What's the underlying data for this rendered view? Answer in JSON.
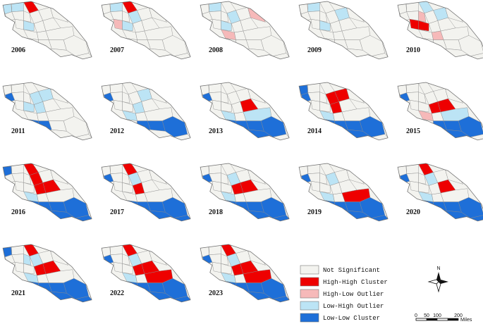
{
  "colors": {
    "not_significant": "#f3f3ef",
    "high_high": "#ee0000",
    "high_low": "#f6b9b9",
    "low_high": "#bce4f5",
    "low_low": "#1e6fd8",
    "border": "#8c8c8c"
  },
  "maps": [
    {
      "year": "2006",
      "hh": [
        3
      ],
      "hl": [],
      "lh": [
        0,
        2,
        9
      ],
      "ll": []
    },
    {
      "year": "2007",
      "hh": [
        3
      ],
      "hl": [
        8
      ],
      "lh": [
        2,
        9,
        6
      ],
      "ll": []
    },
    {
      "year": "2008",
      "hh": [],
      "hl": [
        12,
        13
      ],
      "lh": [
        2,
        9,
        6
      ],
      "ll": []
    },
    {
      "year": "2009",
      "hh": [],
      "hl": [],
      "lh": [
        2,
        9,
        7
      ],
      "ll": []
    },
    {
      "year": "2010",
      "hh": [
        8,
        9
      ],
      "hl": [
        5,
        14
      ],
      "lh": [
        3,
        7
      ],
      "ll": []
    },
    {
      "year": "2011",
      "hh": [],
      "hl": [],
      "lh": [
        6,
        9,
        7,
        10
      ],
      "ll": [
        1,
        16,
        17
      ]
    },
    {
      "year": "2012",
      "hh": [],
      "hl": [],
      "lh": [
        7,
        10,
        13
      ],
      "ll": [
        1,
        17,
        18,
        19
      ]
    },
    {
      "year": "2013",
      "hh": [
        11
      ],
      "hl": [],
      "lh": [
        13,
        15
      ],
      "ll": [
        1,
        16,
        17,
        18,
        19,
        20
      ]
    },
    {
      "year": "2014",
      "hh": [
        6,
        7,
        10
      ],
      "hl": [],
      "lh": [
        13
      ],
      "ll": [
        0,
        1,
        16,
        17,
        18,
        19,
        20
      ]
    },
    {
      "year": "2015",
      "hh": [
        10,
        11
      ],
      "hl": [
        13
      ],
      "lh": [
        15
      ],
      "ll": [
        1,
        17,
        18,
        19,
        20
      ]
    },
    {
      "year": "2016",
      "hh": [
        3,
        6,
        10,
        11
      ],
      "hl": [],
      "lh": [
        13
      ],
      "ll": [
        0,
        16,
        17,
        18,
        19,
        20,
        21
      ]
    },
    {
      "year": "2017",
      "hh": [
        3,
        10
      ],
      "hl": [],
      "lh": [
        6
      ],
      "ll": [
        1,
        16,
        17,
        18,
        19,
        20,
        21
      ]
    },
    {
      "year": "2018",
      "hh": [
        10,
        11
      ],
      "hl": [],
      "lh": [
        6,
        13
      ],
      "ll": [
        1,
        16,
        17,
        18,
        19,
        20,
        21
      ]
    },
    {
      "year": "2019",
      "hh": [
        15
      ],
      "hl": [],
      "lh": [
        6,
        13
      ],
      "ll": [
        1,
        16,
        17,
        18,
        19,
        20,
        21
      ]
    },
    {
      "year": "2020",
      "hh": [
        3,
        11
      ],
      "hl": [],
      "lh": [
        6,
        13
      ],
      "ll": [
        1,
        16,
        17,
        18,
        19,
        20,
        21
      ]
    },
    {
      "year": "2021",
      "hh": [
        3,
        10,
        11
      ],
      "hl": [],
      "lh": [
        5,
        6,
        13
      ],
      "ll": [
        0,
        16,
        17,
        18,
        19,
        20,
        21
      ]
    },
    {
      "year": "2022",
      "hh": [
        3,
        10,
        11,
        15
      ],
      "hl": [],
      "lh": [
        6,
        13
      ],
      "ll": [
        1,
        16,
        17,
        18,
        19,
        20,
        21
      ]
    },
    {
      "year": "2023",
      "hh": [
        3,
        10,
        11,
        15
      ],
      "hl": [],
      "lh": [
        6,
        13
      ],
      "ll": [
        1,
        16,
        17,
        18,
        19,
        20,
        21
      ]
    }
  ],
  "legend": [
    {
      "key": "not_significant",
      "label": "Not Significant"
    },
    {
      "key": "high_high",
      "label": "High-High Cluster"
    },
    {
      "key": "high_low",
      "label": "High-Low Outlier"
    },
    {
      "key": "low_high",
      "label": "Low-High Outlier"
    },
    {
      "key": "low_low",
      "label": "Low-Low Cluster"
    }
  ],
  "north_label": "N",
  "scale_bar": {
    "ticks": [
      "0",
      "50",
      "100",
      "200"
    ],
    "unit": "Miles"
  }
}
